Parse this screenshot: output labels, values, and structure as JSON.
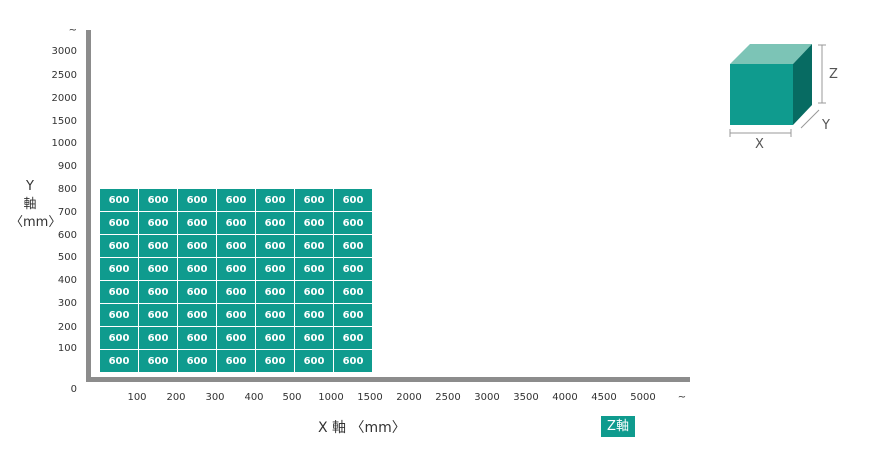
{
  "y_axis": {
    "label": [
      "Y",
      "軸",
      "〈mm〉"
    ],
    "ticks": [
      "~",
      "3000",
      "2500",
      "2000",
      "1500",
      "1000",
      "900",
      "800",
      "700",
      "600",
      "500",
      "400",
      "300",
      "200",
      "100"
    ],
    "zero": "0"
  },
  "x_axis": {
    "label": "X 軸 〈mm〉",
    "ticks": [
      "100",
      "200",
      "300",
      "400",
      "500",
      "1000",
      "1500",
      "2000",
      "2500",
      "3000",
      "3500",
      "4000",
      "4500",
      "5000",
      "~"
    ]
  },
  "z_axis": {
    "label": "Z軸"
  },
  "grid": {
    "rows": 8,
    "cols": 7,
    "cells": [
      [
        "600",
        "600",
        "600",
        "600",
        "600",
        "600",
        "600"
      ],
      [
        "600",
        "600",
        "600",
        "600",
        "600",
        "600",
        "600"
      ],
      [
        "600",
        "600",
        "600",
        "600",
        "600",
        "600",
        "600"
      ],
      [
        "600",
        "600",
        "600",
        "600",
        "600",
        "600",
        "600"
      ],
      [
        "600",
        "600",
        "600",
        "600",
        "600",
        "600",
        "600"
      ],
      [
        "600",
        "600",
        "600",
        "600",
        "600",
        "600",
        "600"
      ],
      [
        "600",
        "600",
        "600",
        "600",
        "600",
        "600",
        "600"
      ],
      [
        "600",
        "600",
        "600",
        "600",
        "600",
        "600",
        "600"
      ]
    ]
  },
  "cube": {
    "x": "X",
    "y": "Y",
    "z": "Z"
  },
  "colors": {
    "accent": "#0f9b8e",
    "cube_top": "#7cc4b6",
    "cube_side": "#076b62",
    "axis": "#8c8c8c"
  }
}
